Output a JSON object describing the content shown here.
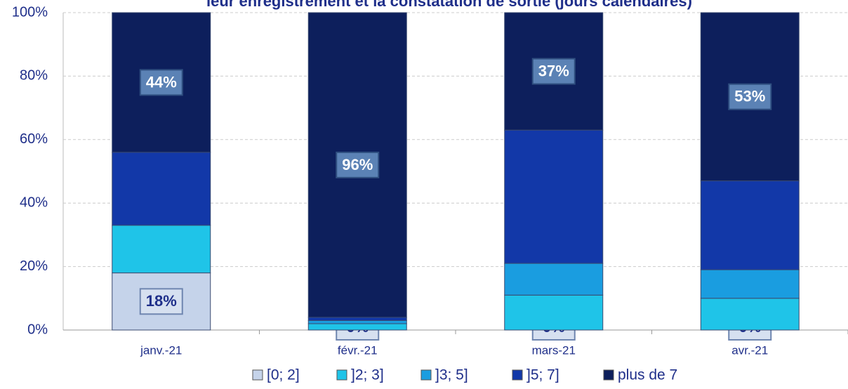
{
  "chart_data": {
    "type": "stacked_bar",
    "title": "leur enregistrement et la constatation de sortie (jours calendaires)",
    "categories": [
      "janv.-21",
      "févr.-21",
      "mars-21",
      "avr.-21"
    ],
    "series": [
      {
        "name": "[0; 2]",
        "color": "#c5d3ea",
        "values": [
          18,
          0,
          0,
          0
        ],
        "value_labels": [
          "18%",
          "0%",
          "0%",
          "0%"
        ]
      },
      {
        "name": "]2; 3]",
        "color": "#1fc4e8",
        "values": [
          15,
          2,
          11,
          10
        ]
      },
      {
        "name": "]3; 5]",
        "color": "#1a9de0",
        "values": [
          0,
          1,
          10,
          9
        ]
      },
      {
        "name": "]5; 7]",
        "color": "#1238a8",
        "values": [
          23,
          1,
          42,
          28
        ]
      },
      {
        "name": "plus de 7",
        "color": "#0d1f5c",
        "values": [
          44,
          96,
          37,
          53
        ],
        "value_labels": [
          "44%",
          "96%",
          "37%",
          "53%"
        ]
      }
    ],
    "ylim": [
      0,
      100
    ],
    "yticks": [
      {
        "value": 0,
        "label": "0%"
      },
      {
        "value": 20,
        "label": "20%"
      },
      {
        "value": 40,
        "label": "40%"
      },
      {
        "value": 60,
        "label": "60%"
      },
      {
        "value": 80,
        "label": "80%"
      },
      {
        "value": 100,
        "label": "100%"
      }
    ],
    "grid": true,
    "legend": "bottom"
  }
}
